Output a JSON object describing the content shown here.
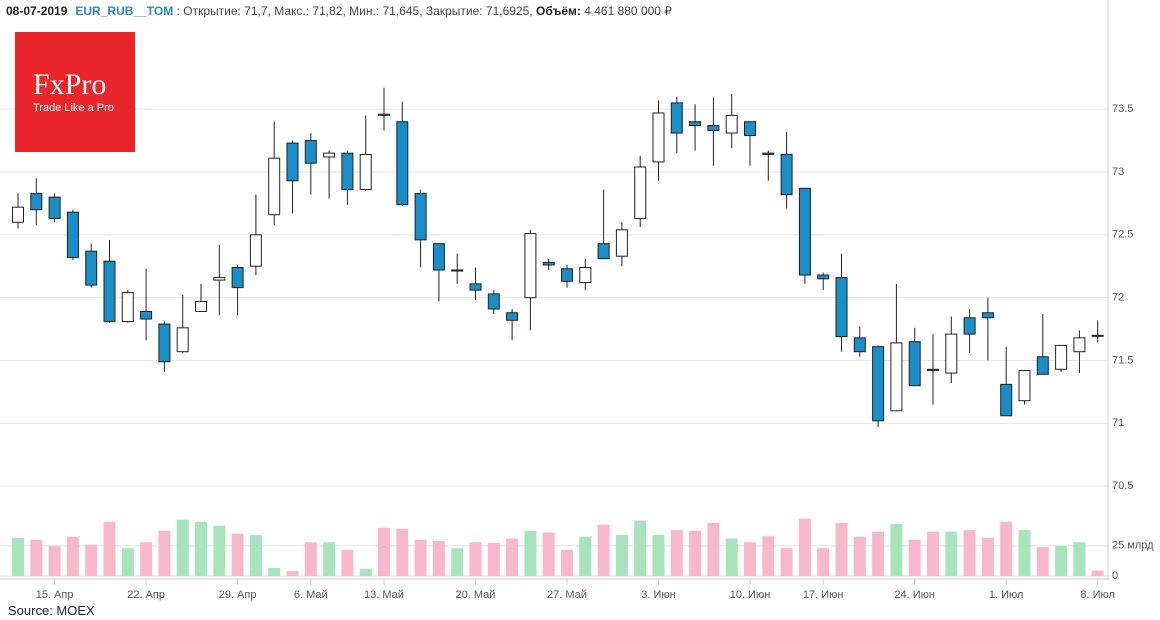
{
  "header": {
    "date": "08-07-2019",
    "symbol": "EUR_RUB__TOM",
    "separator": ":",
    "stats": [
      {
        "label": "Открытие:",
        "value": "71,7"
      },
      {
        "label": "Макс.:",
        "value": "71,82"
      },
      {
        "label": "Мин.:",
        "value": "71,645"
      },
      {
        "label": "Закрытие:",
        "value": "71,6925"
      },
      {
        "label": "Объём:",
        "value": "4 461 880 000 ₽"
      }
    ]
  },
  "logo": {
    "name": "FxPro",
    "tagline": "Trade Like a Pro"
  },
  "source": "Source: MOEX",
  "chart_data": {
    "type": "candlestick",
    "categories": [
      null,
      null,
      "15. Апр",
      null,
      null,
      null,
      null,
      "22. Апр",
      null,
      null,
      null,
      null,
      "29. Апр",
      null,
      null,
      null,
      "6. Май",
      null,
      null,
      null,
      "13. Май",
      null,
      null,
      null,
      null,
      "20. Май",
      null,
      null,
      null,
      null,
      "27. Май",
      null,
      null,
      null,
      null,
      "3. Июн",
      null,
      null,
      null,
      null,
      "10. Июн",
      null,
      null,
      null,
      "17. Июн",
      null,
      null,
      null,
      null,
      "24. Июн",
      null,
      null,
      null,
      null,
      "1. Июл",
      null,
      null,
      null,
      null,
      "8. Июл"
    ],
    "open": [
      72.6,
      72.83,
      72.8,
      72.68,
      72.37,
      72.29,
      71.81,
      71.89,
      71.79,
      71.57,
      71.89,
      72.14,
      72.24,
      72.25,
      72.66,
      73.23,
      73.25,
      73.12,
      73.15,
      72.86,
      73.46,
      73.4,
      72.83,
      72.43,
      72.22,
      72.11,
      72.03,
      71.88,
      72.0,
      72.28,
      72.23,
      72.12,
      72.43,
      72.33,
      72.63,
      73.08,
      73.55,
      73.4,
      73.37,
      73.31,
      73.4,
      73.15,
      73.14,
      72.87,
      72.18,
      72.16,
      71.68,
      71.61,
      71.1,
      71.65,
      71.43,
      71.4,
      71.84,
      71.88,
      71.31,
      71.18,
      71.53,
      71.43,
      71.57,
      71.7
    ],
    "high": [
      72.83,
      72.95,
      72.83,
      72.7,
      72.43,
      72.46,
      72.06,
      72.23,
      71.81,
      72.02,
      72.11,
      72.42,
      72.26,
      72.82,
      73.4,
      73.25,
      73.31,
      73.17,
      73.17,
      73.45,
      73.67,
      73.56,
      72.86,
      72.43,
      72.35,
      72.24,
      72.06,
      71.91,
      72.54,
      72.31,
      72.26,
      72.31,
      72.86,
      72.6,
      73.13,
      73.57,
      73.6,
      73.54,
      73.59,
      73.62,
      73.4,
      73.17,
      73.32,
      72.87,
      72.2,
      72.35,
      71.77,
      71.62,
      72.11,
      71.76,
      71.71,
      71.85,
      71.91,
      72.0,
      71.61,
      71.42,
      71.87,
      71.62,
      71.74,
      71.82
    ],
    "low": [
      72.55,
      72.58,
      72.6,
      72.3,
      72.08,
      71.8,
      71.8,
      71.66,
      71.41,
      71.56,
      71.89,
      71.86,
      71.86,
      72.18,
      72.58,
      72.67,
      72.82,
      72.79,
      72.74,
      72.85,
      73.33,
      72.73,
      72.24,
      71.97,
      72.11,
      71.98,
      71.87,
      71.66,
      71.74,
      72.22,
      72.08,
      72.06,
      72.31,
      72.25,
      72.56,
      72.93,
      73.15,
      73.17,
      73.05,
      73.19,
      73.05,
      72.93,
      72.71,
      72.11,
      72.06,
      71.57,
      71.53,
      70.97,
      71.1,
      71.3,
      71.15,
      71.32,
      71.56,
      71.5,
      71.06,
      71.15,
      71.39,
      71.41,
      71.4,
      71.645
    ],
    "close": [
      72.72,
      72.7,
      72.63,
      72.32,
      72.1,
      71.81,
      72.04,
      71.83,
      71.49,
      71.76,
      71.97,
      72.16,
      72.08,
      72.5,
      73.11,
      72.93,
      73.07,
      73.15,
      72.86,
      73.14,
      73.45,
      72.74,
      72.46,
      72.22,
      72.22,
      72.06,
      71.91,
      71.82,
      72.51,
      72.26,
      72.13,
      72.24,
      72.31,
      72.54,
      73.04,
      73.47,
      73.31,
      73.37,
      73.33,
      73.45,
      73.29,
      73.14,
      72.82,
      72.18,
      72.15,
      71.69,
      71.57,
      71.02,
      71.64,
      71.3,
      71.42,
      71.71,
      71.71,
      71.84,
      71.06,
      71.42,
      71.39,
      71.62,
      71.68,
      71.6925
    ],
    "volume": [
      31.7,
      30,
      25,
      32.5,
      26,
      45,
      23,
      28,
      37.5,
      46.7,
      45,
      41.7,
      35,
      34,
      6.7,
      4,
      28,
      28,
      21.7,
      6,
      40,
      39,
      30,
      29,
      23,
      28,
      27.5,
      31,
      37.5,
      36,
      21.7,
      32.5,
      42.5,
      34,
      46,
      34,
      38,
      37.5,
      44,
      31,
      28,
      33,
      23,
      47.5,
      23,
      44,
      32.5,
      36.7,
      43,
      30,
      36.7,
      36.7,
      38,
      31.7,
      45,
      38,
      24,
      25,
      28,
      4.46
    ],
    "ylim": [
      70.35,
      74.13
    ],
    "yticks": [
      70.5,
      71,
      71.5,
      72,
      72.5,
      73,
      73.5
    ],
    "volume_ylim": [
      0,
      53
    ],
    "volume_yticks": [
      0,
      {
        "value": 25,
        "label": "25 млрд"
      }
    ],
    "grid": true,
    "up_color": "#ffffff",
    "down_color": "#1b8ec8",
    "wick_color": "#222222",
    "volume_up_color": "#a8e4bb",
    "volume_down_color": "#f7b8cc"
  }
}
